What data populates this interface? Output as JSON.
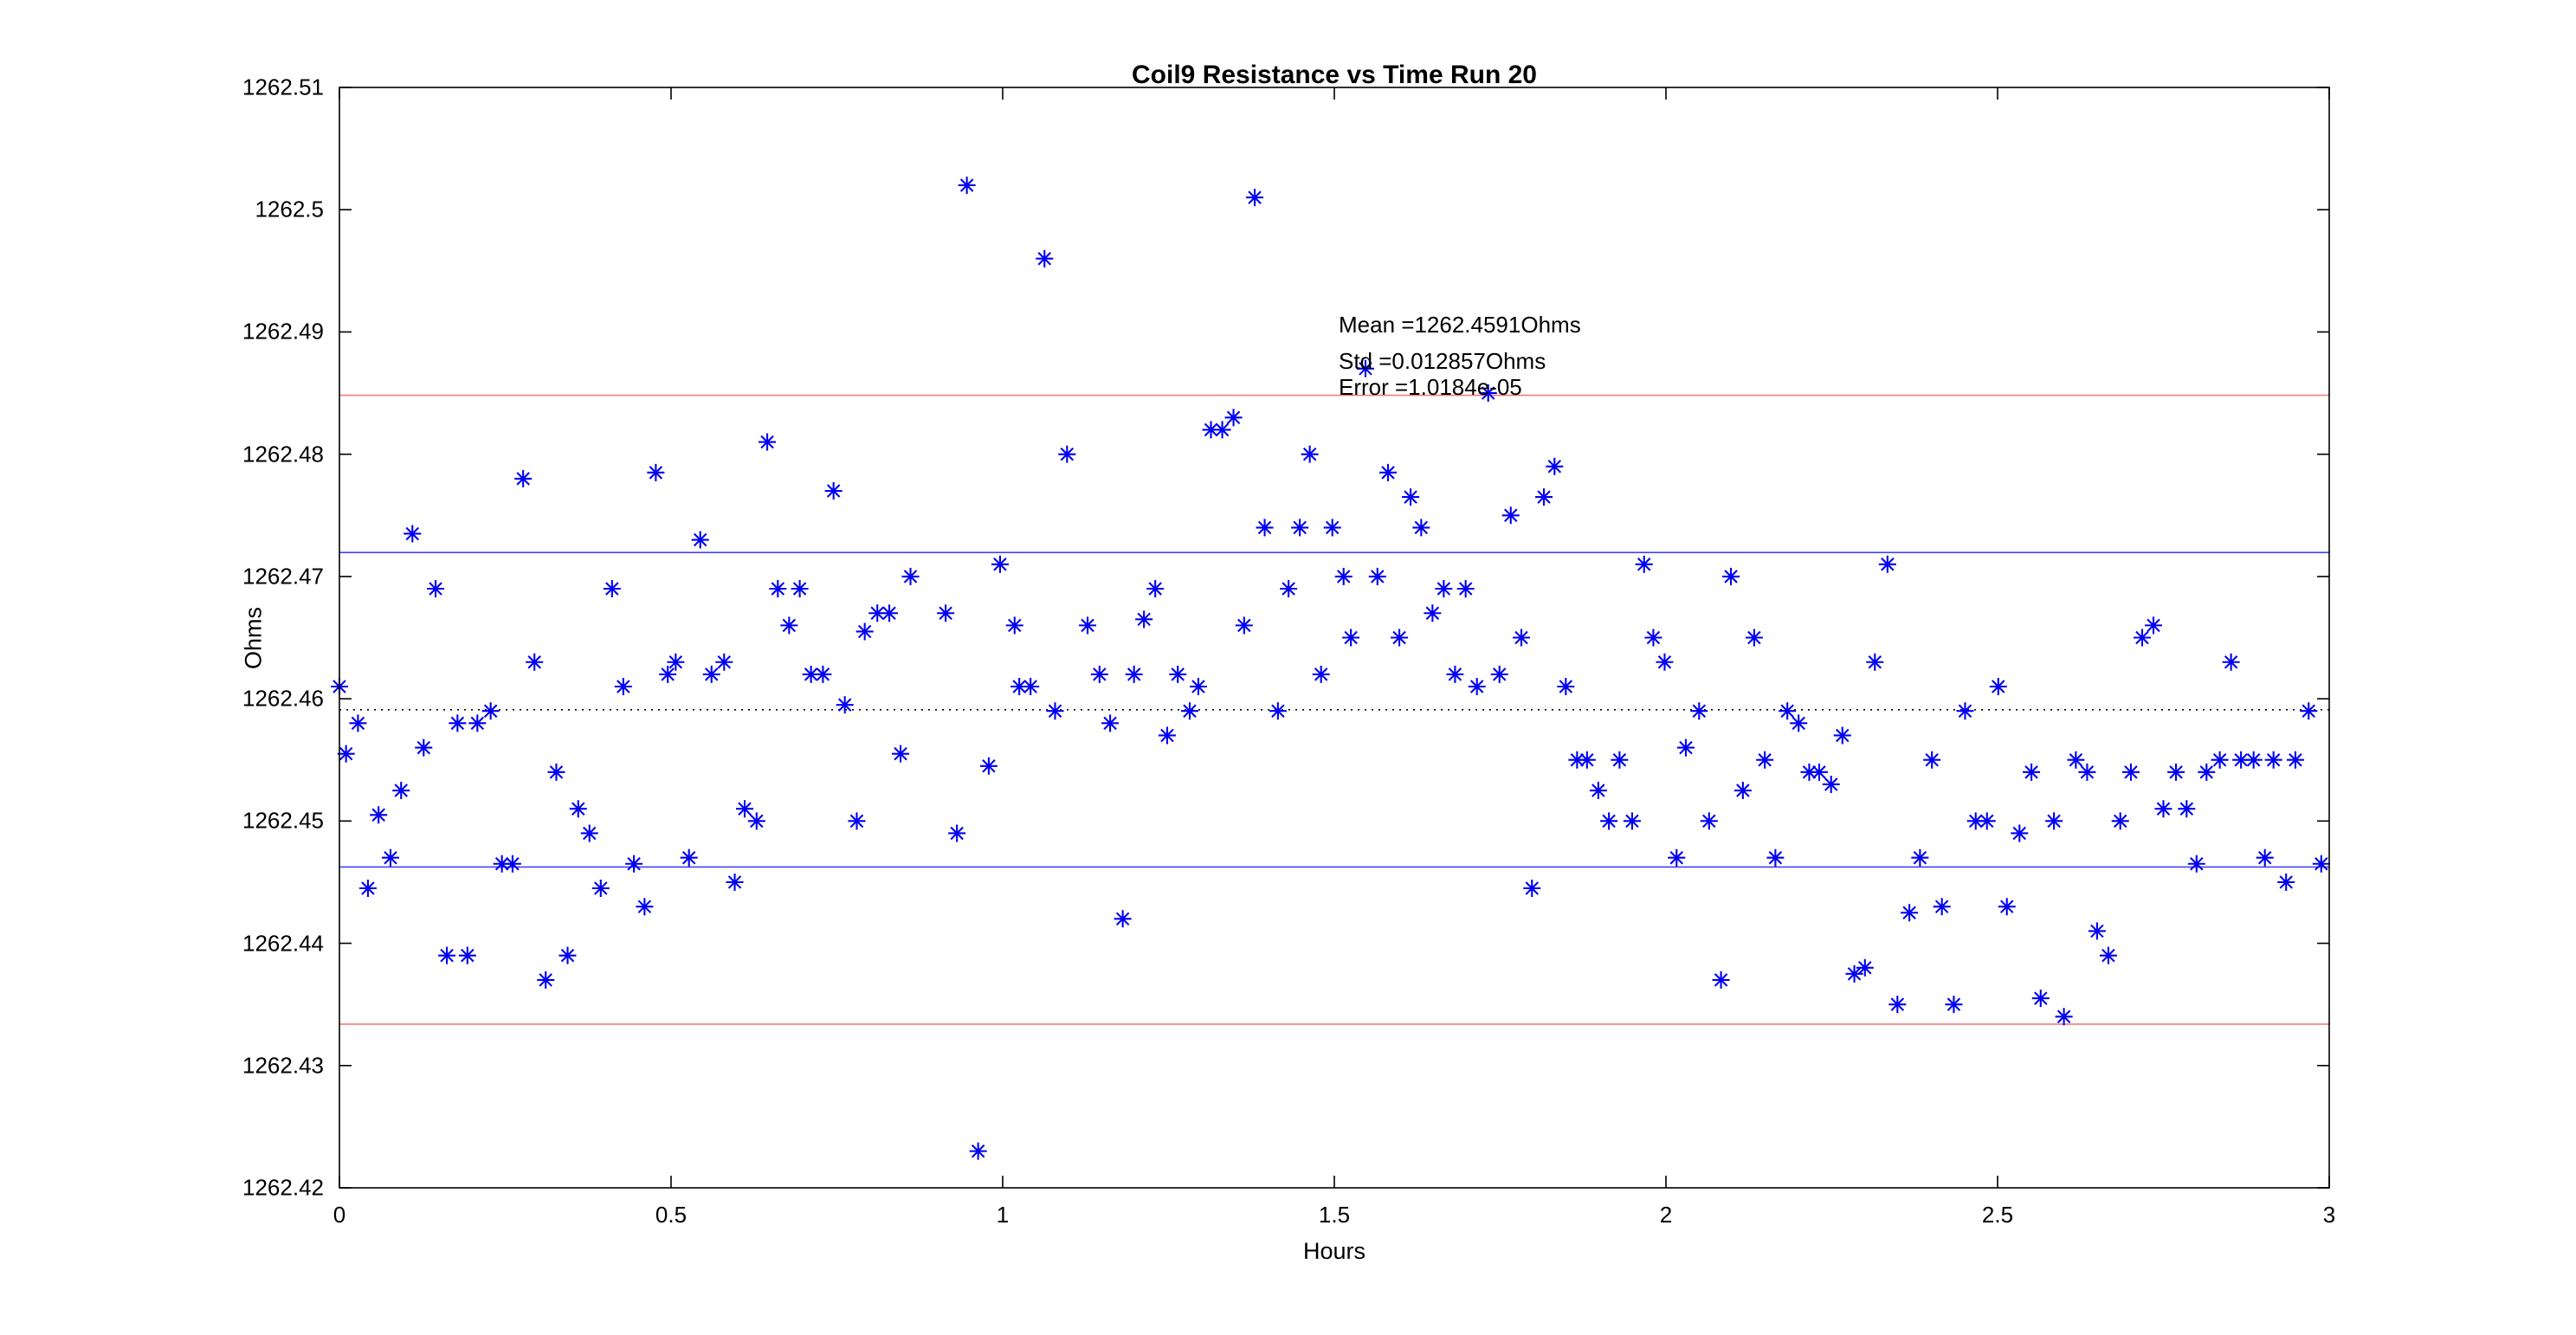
{
  "figure": {
    "title": "Coil9 Resistance vs Time Run 20",
    "xlabel": "Hours",
    "ylabel": "Ohms"
  },
  "annotation": {
    "mean_label": "Mean =1262.4591Ohms",
    "std_label": "Std =0.012857Ohms",
    "error_label": "Error =1.0184e-05"
  },
  "colors": {
    "marker": "#0000f2",
    "sigma_line": "#4444f0",
    "two_sigma_line": "#f47c7c",
    "mean_line": "#000000",
    "axis": "#000000",
    "background": "#ffffff"
  },
  "chart_data": {
    "type": "scatter",
    "title": "Coil9 Resistance vs Time Run 20",
    "xlabel": "Hours",
    "ylabel": "Ohms",
    "xlim": [
      0,
      3
    ],
    "ylim": [
      1262.42,
      1262.51
    ],
    "grid": false,
    "marker": "asterisk",
    "x_ticks": [
      0,
      0.5,
      1,
      1.5,
      2,
      2.5,
      3
    ],
    "x_tick_labels": [
      "0",
      "0.5",
      "1",
      "1.5",
      "2",
      "2.5",
      "3"
    ],
    "y_ticks": [
      1262.51,
      1262.5,
      1262.49,
      1262.48,
      1262.47,
      1262.46,
      1262.45,
      1262.44,
      1262.43,
      1262.42
    ],
    "y_tick_labels": [
      "1262.51",
      "1262.5",
      "1262.49",
      "1262.48",
      "1262.47",
      "1262.46",
      "1262.45",
      "1262.44",
      "1262.43",
      "1262.42"
    ],
    "stats": {
      "mean": 1262.4591,
      "std": 0.012857,
      "error": 1.0184e-05
    },
    "stat_lines": [
      {
        "name": "mean-plus-2sigma",
        "value": 1262.48482,
        "color": "#f47c7c",
        "style": "solid"
      },
      {
        "name": "mean-plus-sigma",
        "value": 1262.47196,
        "color": "#4444f0",
        "style": "solid"
      },
      {
        "name": "mean",
        "value": 1262.4591,
        "color": "#000000",
        "style": "dotted"
      },
      {
        "name": "mean-minus-sigma",
        "value": 1262.44624,
        "color": "#4444f0",
        "style": "solid"
      },
      {
        "name": "mean-minus-2sigma",
        "value": 1262.43339,
        "color": "#f47c7c",
        "style": "solid"
      }
    ],
    "series": [
      {
        "name": "Coil9 resistance",
        "points": [
          [
            0.0,
            1262.461
          ],
          [
            0.01,
            1262.4555
          ],
          [
            0.028,
            1262.458
          ],
          [
            0.043,
            1262.4445
          ],
          [
            0.059,
            1262.4505
          ],
          [
            0.077,
            1262.447
          ],
          [
            0.093,
            1262.4525
          ],
          [
            0.11,
            1262.4735
          ],
          [
            0.127,
            1262.456
          ],
          [
            0.145,
            1262.469
          ],
          [
            0.162,
            1262.439
          ],
          [
            0.178,
            1262.458
          ],
          [
            0.193,
            1262.439
          ],
          [
            0.208,
            1262.458
          ],
          [
            0.228,
            1262.459
          ],
          [
            0.245,
            1262.4465
          ],
          [
            0.261,
            1262.4465
          ],
          [
            0.277,
            1262.478
          ],
          [
            0.294,
            1262.463
          ],
          [
            0.311,
            1262.437
          ],
          [
            0.327,
            1262.454
          ],
          [
            0.344,
            1262.439
          ],
          [
            0.36,
            1262.451
          ],
          [
            0.377,
            1262.449
          ],
          [
            0.394,
            1262.4445
          ],
          [
            0.411,
            1262.469
          ],
          [
            0.428,
            1262.461
          ],
          [
            0.444,
            1262.4465
          ],
          [
            0.46,
            1262.443
          ],
          [
            0.477,
            1262.4785
          ],
          [
            0.495,
            1262.462
          ],
          [
            0.507,
            1262.463
          ],
          [
            0.527,
            1262.447
          ],
          [
            0.544,
            1262.473
          ],
          [
            0.561,
            1262.462
          ],
          [
            0.58,
            1262.463
          ],
          [
            0.596,
            1262.445
          ],
          [
            0.611,
            1262.451
          ],
          [
            0.629,
            1262.45
          ],
          [
            0.645,
            1262.481
          ],
          [
            0.661,
            1262.469
          ],
          [
            0.678,
            1262.466
          ],
          [
            0.694,
            1262.469
          ],
          [
            0.711,
            1262.462
          ],
          [
            0.729,
            1262.462
          ],
          [
            0.745,
            1262.477
          ],
          [
            0.762,
            1262.4595
          ],
          [
            0.78,
            1262.45
          ],
          [
            0.792,
            1262.4655
          ],
          [
            0.811,
            1262.467
          ],
          [
            0.829,
            1262.467
          ],
          [
            0.846,
            1262.4555
          ],
          [
            0.861,
            1262.47
          ],
          [
            0.914,
            1262.467
          ],
          [
            0.931,
            1262.449
          ],
          [
            0.946,
            1262.502
          ],
          [
            0.963,
            1262.423
          ],
          [
            0.979,
            1262.4545
          ],
          [
            0.996,
            1262.471
          ],
          [
            1.018,
            1262.466
          ],
          [
            1.025,
            1262.461
          ],
          [
            1.042,
            1262.461
          ],
          [
            1.063,
            1262.496
          ],
          [
            1.079,
            1262.459
          ],
          [
            1.097,
            1262.48
          ],
          [
            1.128,
            1262.466
          ],
          [
            1.146,
            1262.462
          ],
          [
            1.162,
            1262.458
          ],
          [
            1.181,
            1262.442
          ],
          [
            1.198,
            1262.462
          ],
          [
            1.213,
            1262.4665
          ],
          [
            1.23,
            1262.469
          ],
          [
            1.248,
            1262.457
          ],
          [
            1.264,
            1262.462
          ],
          [
            1.282,
            1262.459
          ],
          [
            1.295,
            1262.461
          ],
          [
            1.314,
            1262.482
          ],
          [
            1.331,
            1262.482
          ],
          [
            1.348,
            1262.483
          ],
          [
            1.364,
            1262.466
          ],
          [
            1.38,
            1262.501
          ],
          [
            1.395,
            1262.474
          ],
          [
            1.415,
            1262.459
          ],
          [
            1.431,
            1262.469
          ],
          [
            1.448,
            1262.474
          ],
          [
            1.463,
            1262.48
          ],
          [
            1.48,
            1262.462
          ],
          [
            1.497,
            1262.474
          ],
          [
            1.514,
            1262.47
          ],
          [
            1.525,
            1262.465
          ],
          [
            1.547,
            1262.487
          ],
          [
            1.565,
            1262.47
          ],
          [
            1.581,
            1262.4785
          ],
          [
            1.598,
            1262.465
          ],
          [
            1.615,
            1262.4765
          ],
          [
            1.631,
            1262.474
          ],
          [
            1.648,
            1262.467
          ],
          [
            1.665,
            1262.469
          ],
          [
            1.682,
            1262.462
          ],
          [
            1.698,
            1262.469
          ],
          [
            1.715,
            1262.461
          ],
          [
            1.732,
            1262.485
          ],
          [
            1.749,
            1262.462
          ],
          [
            1.766,
            1262.475
          ],
          [
            1.782,
            1262.465
          ],
          [
            1.798,
            1262.4445
          ],
          [
            1.816,
            1262.4765
          ],
          [
            1.832,
            1262.479
          ],
          [
            1.849,
            1262.461
          ],
          [
            1.866,
            1262.455
          ],
          [
            1.881,
            1262.455
          ],
          [
            1.898,
            1262.4525
          ],
          [
            1.914,
            1262.45
          ],
          [
            1.93,
            1262.455
          ],
          [
            1.949,
            1262.45
          ],
          [
            1.967,
            1262.471
          ],
          [
            1.981,
            1262.465
          ],
          [
            1.998,
            1262.463
          ],
          [
            2.016,
            1262.447
          ],
          [
            2.03,
            1262.456
          ],
          [
            2.05,
            1262.459
          ],
          [
            2.065,
            1262.45
          ],
          [
            2.083,
            1262.437
          ],
          [
            2.098,
            1262.47
          ],
          [
            2.116,
            1262.4525
          ],
          [
            2.133,
            1262.465
          ],
          [
            2.149,
            1262.455
          ],
          [
            2.165,
            1262.447
          ],
          [
            2.183,
            1262.459
          ],
          [
            2.2,
            1262.458
          ],
          [
            2.216,
            1262.454
          ],
          [
            2.231,
            1262.454
          ],
          [
            2.249,
            1262.453
          ],
          [
            2.266,
            1262.457
          ],
          [
            2.284,
            1262.4375
          ],
          [
            2.3,
            1262.438
          ],
          [
            2.315,
            1262.463
          ],
          [
            2.334,
            1262.471
          ],
          [
            2.349,
            1262.435
          ],
          [
            2.367,
            1262.4425
          ],
          [
            2.383,
            1262.447
          ],
          [
            2.401,
            1262.455
          ],
          [
            2.416,
            1262.443
          ],
          [
            2.434,
            1262.435
          ],
          [
            2.451,
            1262.459
          ],
          [
            2.467,
            1262.45
          ],
          [
            2.484,
            1262.45
          ],
          [
            2.501,
            1262.461
          ],
          [
            2.514,
            1262.443
          ],
          [
            2.533,
            1262.449
          ],
          [
            2.551,
            1262.454
          ],
          [
            2.565,
            1262.4355
          ],
          [
            2.585,
            1262.45
          ],
          [
            2.6,
            1262.434
          ],
          [
            2.618,
            1262.455
          ],
          [
            2.635,
            1262.454
          ],
          [
            2.65,
            1262.441
          ],
          [
            2.667,
            1262.439
          ],
          [
            2.685,
            1262.45
          ],
          [
            2.701,
            1262.454
          ],
          [
            2.718,
            1262.465
          ],
          [
            2.735,
            1262.466
          ],
          [
            2.75,
            1262.451
          ],
          [
            2.769,
            1262.454
          ],
          [
            2.785,
            1262.451
          ],
          [
            2.8,
            1262.4465
          ],
          [
            2.815,
            1262.454
          ],
          [
            2.835,
            1262.455
          ],
          [
            2.852,
            1262.463
          ],
          [
            2.867,
            1262.455
          ],
          [
            2.886,
            1262.455
          ],
          [
            2.903,
            1262.447
          ],
          [
            2.916,
            1262.455
          ],
          [
            2.935,
            1262.445
          ],
          [
            2.949,
            1262.455
          ],
          [
            2.969,
            1262.459
          ],
          [
            2.988,
            1262.4465
          ]
        ]
      }
    ]
  }
}
